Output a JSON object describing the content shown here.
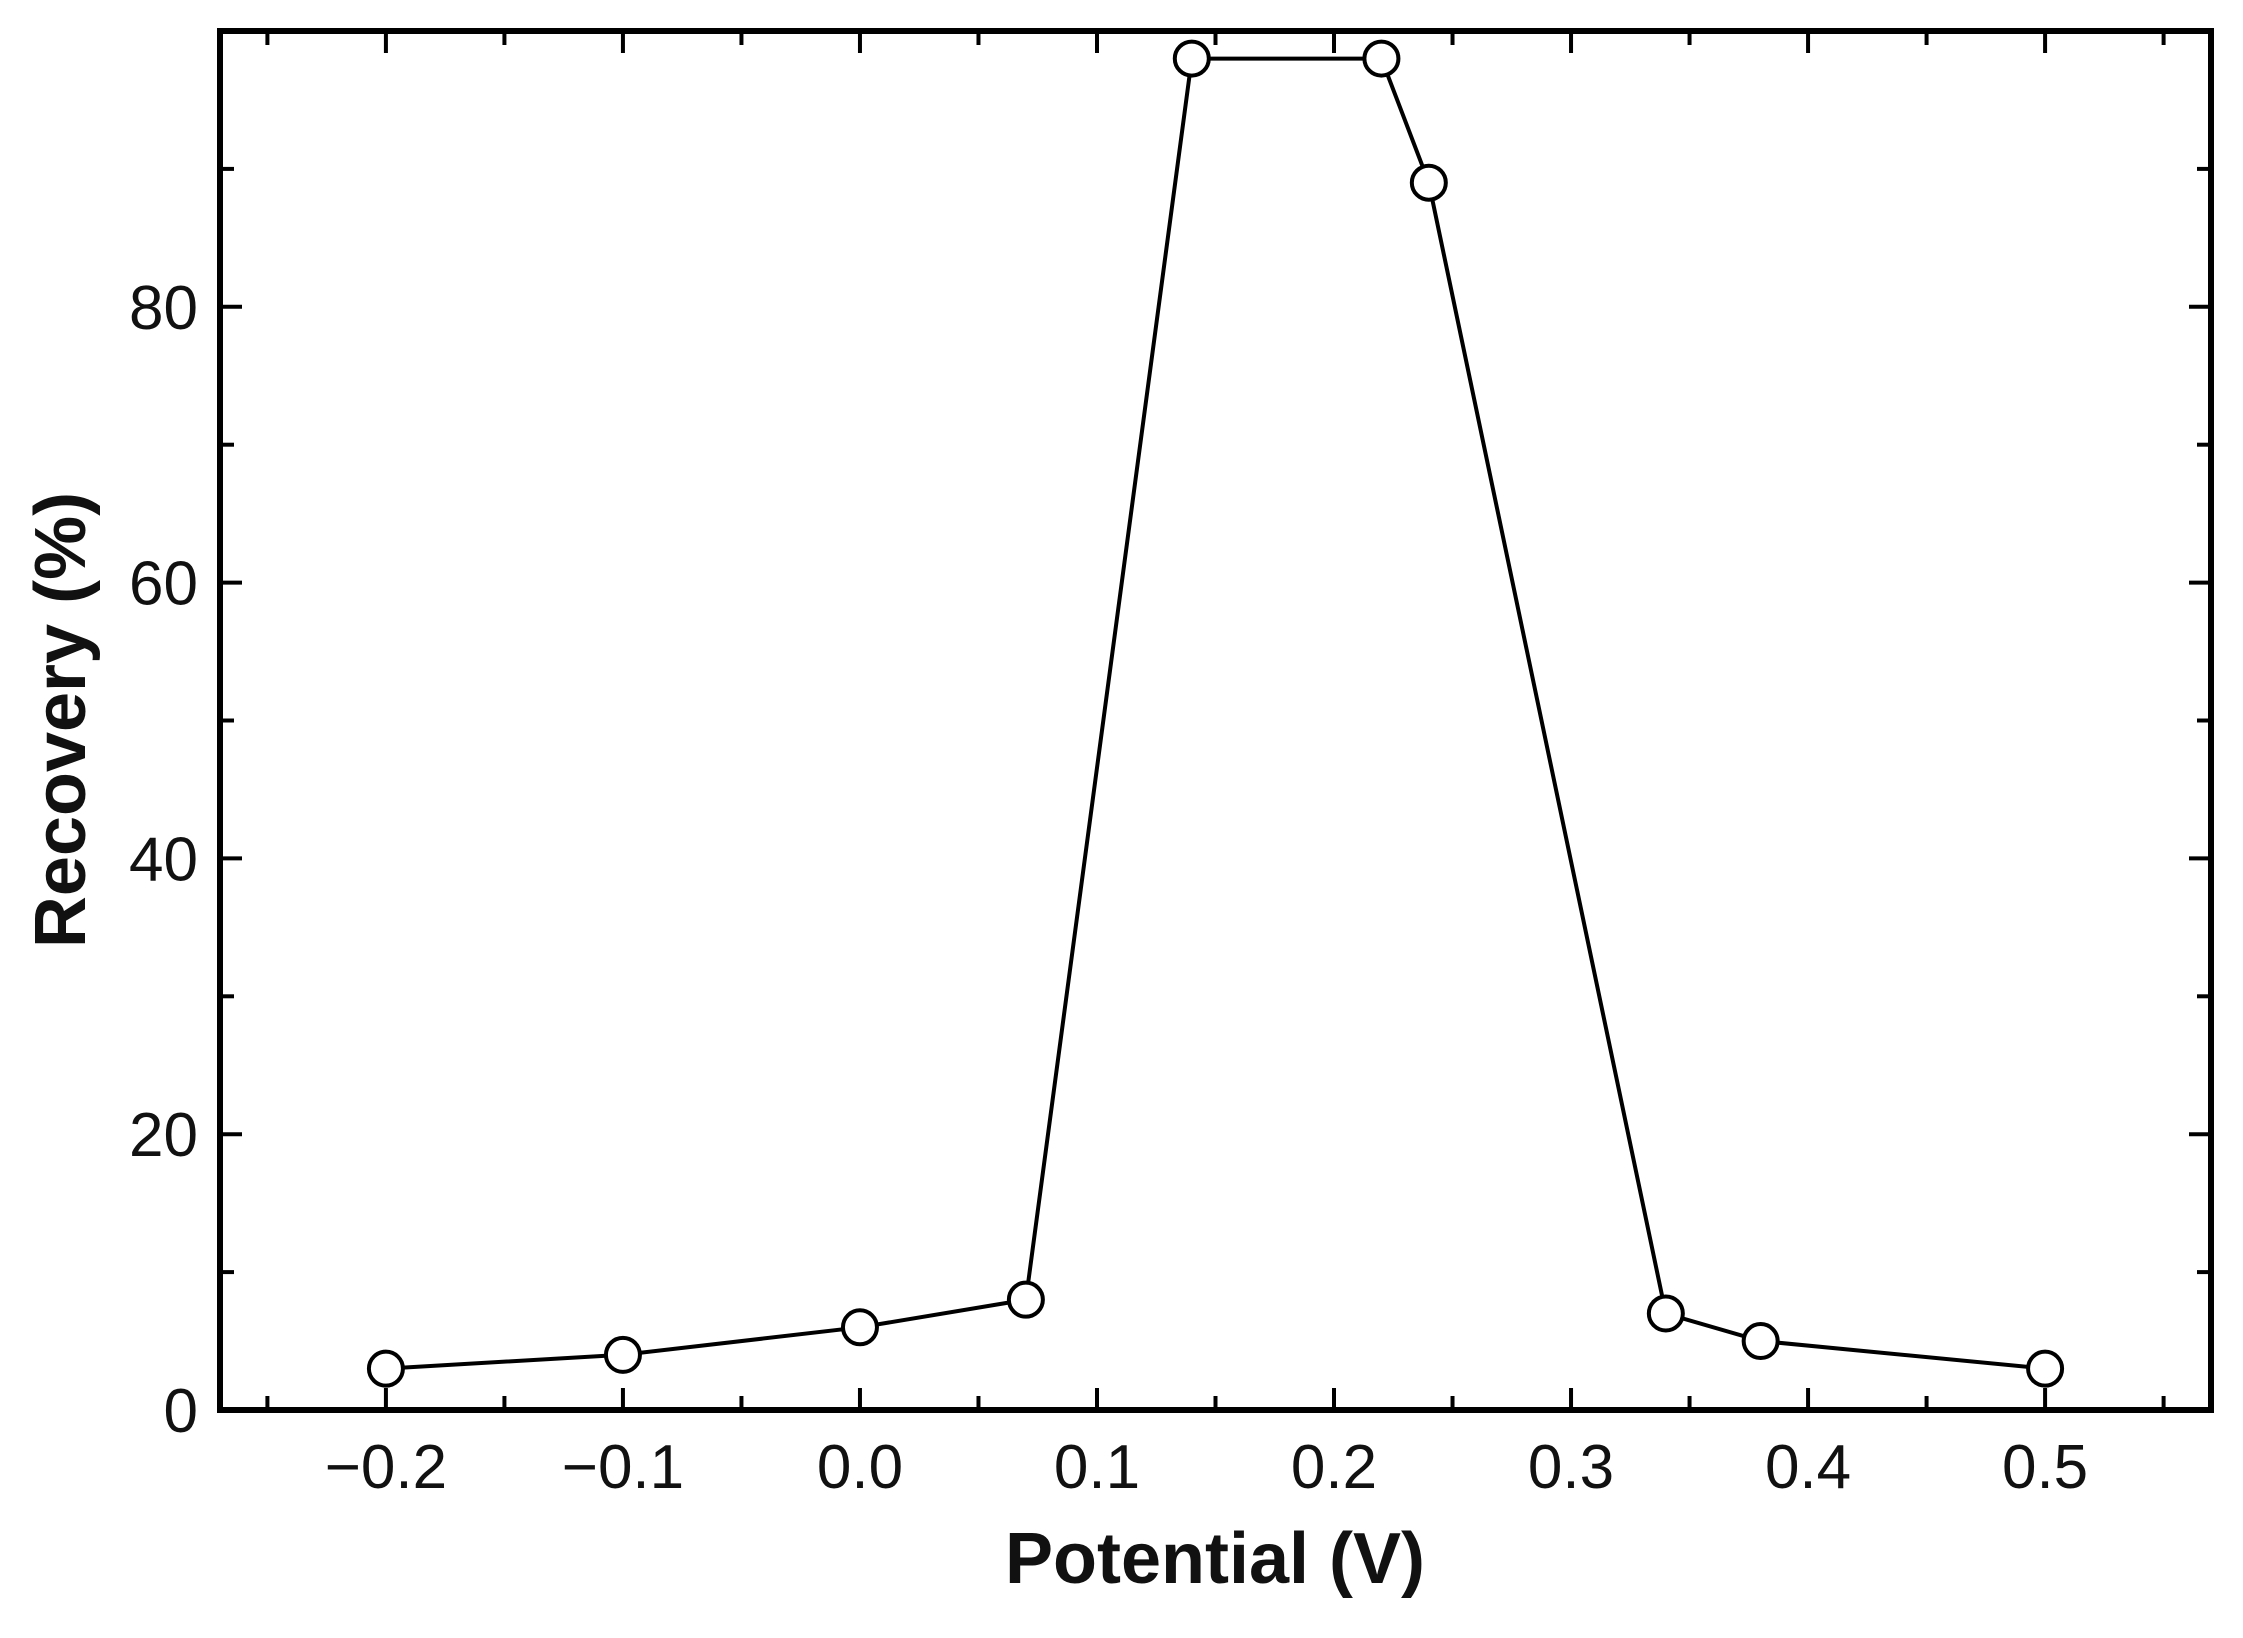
{
  "chart_data": {
    "type": "line",
    "title": "",
    "xlabel": "Potential (V)",
    "ylabel": "Recovery (%)",
    "xlim": [
      -0.27,
      0.57
    ],
    "ylim": [
      0,
      100
    ],
    "x_ticks": [
      -0.2,
      -0.1,
      0.0,
      0.1,
      0.2,
      0.3,
      0.4,
      0.5
    ],
    "x_tick_labels": [
      "−0.2",
      "−0.1",
      "0.0",
      "0.1",
      "0.2",
      "0.3",
      "0.4",
      "0.5"
    ],
    "y_ticks": [
      0,
      20,
      40,
      60,
      80
    ],
    "y_tick_labels": [
      "0",
      "20",
      "40",
      "60",
      "80"
    ],
    "grid": false,
    "marker": "open-circle",
    "line_color": "#000000",
    "series": [
      {
        "x": [
          -0.2,
          -0.1,
          0.0,
          0.07,
          0.14,
          0.22,
          0.24,
          0.34,
          0.38,
          0.5
        ],
        "y": [
          3,
          4,
          6,
          8,
          98,
          98,
          89,
          7,
          5,
          3
        ]
      }
    ]
  }
}
